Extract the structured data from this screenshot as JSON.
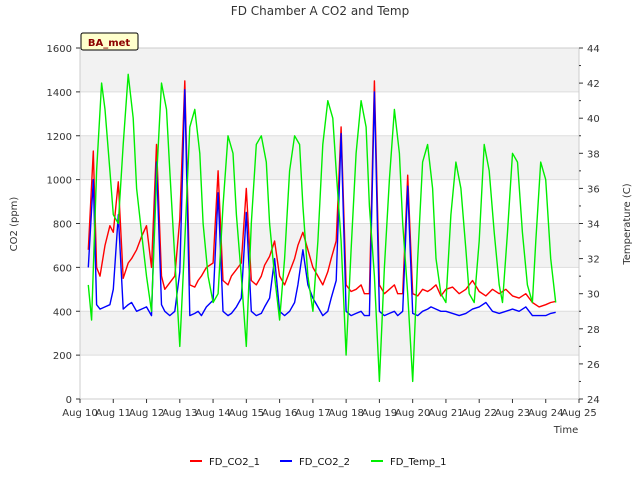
{
  "chart_data": {
    "type": "line",
    "title": "FD Chamber A CO2 and Temp",
    "xlabel": "Time",
    "ylabel_left": "CO2 (ppm)",
    "ylabel_right": "Temperature (C)",
    "badge": "BA_met",
    "x_tick_labels": [
      "Aug 10",
      "Aug 11",
      "Aug 12",
      "Aug 13",
      "Aug 14",
      "Aug 15",
      "Aug 16",
      "Aug 17",
      "Aug 18",
      "Aug 19",
      "Aug 20",
      "Aug 21",
      "Aug 22",
      "Aug 23",
      "Aug 24",
      "Aug 25"
    ],
    "xlim_days": [
      10,
      25
    ],
    "ylim_left": [
      0,
      1600
    ],
    "yticks_left": [
      0,
      200,
      400,
      600,
      800,
      1000,
      1200,
      1400,
      1600
    ],
    "ylim_right": [
      24,
      44
    ],
    "yticks_right": [
      24,
      26,
      28,
      30,
      32,
      34,
      36,
      38,
      40,
      42,
      44
    ],
    "grid": true,
    "legend_position": "bottom",
    "series": [
      {
        "name": "FD_CO2_1",
        "axis": "left",
        "color": "#ff0000",
        "x": [
          10.25,
          10.4,
          10.5,
          10.6,
          10.75,
          10.9,
          11.0,
          11.15,
          11.3,
          11.45,
          11.55,
          11.7,
          11.85,
          12.0,
          12.15,
          12.3,
          12.45,
          12.55,
          12.7,
          12.85,
          13.0,
          13.15,
          13.3,
          13.45,
          13.55,
          13.65,
          13.8,
          14.0,
          14.15,
          14.3,
          14.45,
          14.55,
          14.7,
          14.85,
          15.0,
          15.15,
          15.3,
          15.45,
          15.55,
          15.7,
          15.85,
          16.0,
          16.15,
          16.3,
          16.45,
          16.55,
          16.7,
          16.85,
          17.0,
          17.15,
          17.3,
          17.45,
          17.55,
          17.7,
          17.85,
          18.0,
          18.15,
          18.3,
          18.45,
          18.55,
          18.7,
          18.85,
          19.0,
          19.15,
          19.3,
          19.45,
          19.55,
          19.7,
          19.85,
          20.0,
          20.15,
          20.3,
          20.45,
          20.55,
          20.7,
          20.85,
          21.0,
          21.2,
          21.4,
          21.6,
          21.8,
          22.0,
          22.2,
          22.4,
          22.6,
          22.8,
          23.0,
          23.2,
          23.4,
          23.6,
          23.8,
          24.0,
          24.15,
          24.3
        ],
        "y": [
          680,
          1130,
          600,
          560,
          700,
          790,
          760,
          990,
          550,
          620,
          640,
          680,
          740,
          790,
          600,
          1160,
          560,
          500,
          530,
          560,
          820,
          1450,
          520,
          510,
          540,
          560,
          600,
          620,
          1040,
          540,
          520,
          560,
          590,
          620,
          960,
          540,
          520,
          560,
          610,
          650,
          720,
          560,
          520,
          580,
          640,
          700,
          760,
          680,
          600,
          560,
          520,
          580,
          640,
          720,
          1240,
          520,
          490,
          500,
          520,
          480,
          480,
          1450,
          520,
          480,
          500,
          520,
          480,
          480,
          1020,
          480,
          470,
          500,
          490,
          500,
          520,
          470,
          500,
          510,
          480,
          500,
          540,
          490,
          470,
          500,
          480,
          500,
          470,
          460,
          480,
          440,
          420,
          430,
          440,
          445
        ]
      },
      {
        "name": "FD_CO2_2",
        "axis": "left",
        "color": "#0000ff",
        "x": [
          10.25,
          10.4,
          10.5,
          10.6,
          10.75,
          10.9,
          11.0,
          11.15,
          11.3,
          11.45,
          11.55,
          11.7,
          11.85,
          12.0,
          12.15,
          12.3,
          12.45,
          12.55,
          12.7,
          12.85,
          13.0,
          13.15,
          13.3,
          13.45,
          13.55,
          13.65,
          13.8,
          14.0,
          14.15,
          14.3,
          14.45,
          14.55,
          14.7,
          14.85,
          15.0,
          15.15,
          15.3,
          15.45,
          15.55,
          15.7,
          15.85,
          16.0,
          16.15,
          16.3,
          16.45,
          16.55,
          16.7,
          16.85,
          17.0,
          17.15,
          17.3,
          17.45,
          17.55,
          17.7,
          17.85,
          18.0,
          18.15,
          18.3,
          18.45,
          18.55,
          18.7,
          18.85,
          19.0,
          19.15,
          19.3,
          19.45,
          19.55,
          19.7,
          19.85,
          20.0,
          20.15,
          20.3,
          20.45,
          20.55,
          20.7,
          20.85,
          21.0,
          21.2,
          21.4,
          21.6,
          21.8,
          22.0,
          22.2,
          22.4,
          22.6,
          22.8,
          23.0,
          23.2,
          23.4,
          23.6,
          23.8,
          24.0,
          24.15,
          24.3
        ],
        "y": [
          600,
          1000,
          430,
          410,
          420,
          430,
          500,
          840,
          410,
          430,
          440,
          400,
          410,
          420,
          380,
          1080,
          430,
          400,
          380,
          400,
          580,
          1410,
          380,
          390,
          400,
          380,
          420,
          450,
          940,
          400,
          380,
          390,
          420,
          460,
          850,
          400,
          380,
          390,
          420,
          460,
          640,
          400,
          380,
          400,
          440,
          520,
          680,
          520,
          460,
          420,
          380,
          400,
          460,
          540,
          1210,
          400,
          380,
          390,
          400,
          380,
          380,
          1400,
          400,
          380,
          390,
          400,
          380,
          400,
          970,
          390,
          380,
          400,
          410,
          420,
          410,
          400,
          400,
          390,
          380,
          390,
          410,
          420,
          440,
          400,
          390,
          400,
          410,
          400,
          420,
          380,
          380,
          380,
          390,
          395
        ]
      },
      {
        "name": "FD_Temp_1",
        "axis": "right",
        "color": "#00ee00",
        "x": [
          10.25,
          10.35,
          10.5,
          10.65,
          10.75,
          10.9,
          11.0,
          11.15,
          11.3,
          11.45,
          11.6,
          11.7,
          11.85,
          12.0,
          12.15,
          12.3,
          12.45,
          12.6,
          12.7,
          12.85,
          13.0,
          13.15,
          13.3,
          13.45,
          13.6,
          13.7,
          13.85,
          14.0,
          14.15,
          14.3,
          14.45,
          14.6,
          14.7,
          14.85,
          15.0,
          15.15,
          15.3,
          15.45,
          15.6,
          15.7,
          15.85,
          16.0,
          16.15,
          16.3,
          16.45,
          16.6,
          16.7,
          16.85,
          17.0,
          17.15,
          17.3,
          17.45,
          17.6,
          17.7,
          17.85,
          18.0,
          18.15,
          18.3,
          18.45,
          18.6,
          18.7,
          18.85,
          19.0,
          19.15,
          19.3,
          19.45,
          19.6,
          19.7,
          19.85,
          20.0,
          20.15,
          20.3,
          20.45,
          20.6,
          20.7,
          20.85,
          21.0,
          21.15,
          21.3,
          21.45,
          21.6,
          21.7,
          21.85,
          22.0,
          22.15,
          22.3,
          22.45,
          22.6,
          22.7,
          22.85,
          23.0,
          23.15,
          23.3,
          23.45,
          23.6,
          23.7,
          23.85,
          24.0,
          24.15,
          24.3
        ],
        "y": [
          30.5,
          28.5,
          37.0,
          42.0,
          40.5,
          37.0,
          34.5,
          34.0,
          38.5,
          42.5,
          40.0,
          36.0,
          33.5,
          31.0,
          29.0,
          36.5,
          42.0,
          40.5,
          37.0,
          32.0,
          27.0,
          33.0,
          39.5,
          40.5,
          38.0,
          34.0,
          31.0,
          29.5,
          30.0,
          35.0,
          39.0,
          38.0,
          34.5,
          31.0,
          27.0,
          34.0,
          38.5,
          39.0,
          37.5,
          34.0,
          31.0,
          28.5,
          32.0,
          37.0,
          39.0,
          38.5,
          35.0,
          31.0,
          29.0,
          33.0,
          38.5,
          41.0,
          40.0,
          37.0,
          33.0,
          26.5,
          32.5,
          38.0,
          41.0,
          39.5,
          35.0,
          31.0,
          25.0,
          31.5,
          36.5,
          40.5,
          38.0,
          34.0,
          30.0,
          25.0,
          32.0,
          37.5,
          38.5,
          36.0,
          32.0,
          30.0,
          29.5,
          34.5,
          37.5,
          36.0,
          32.5,
          30.0,
          29.5,
          33.0,
          38.5,
          37.0,
          33.5,
          30.5,
          29.5,
          33.5,
          38.0,
          37.5,
          33.5,
          30.5,
          29.5,
          33.0,
          37.5,
          36.5,
          32.0,
          29.5
        ]
      }
    ]
  }
}
